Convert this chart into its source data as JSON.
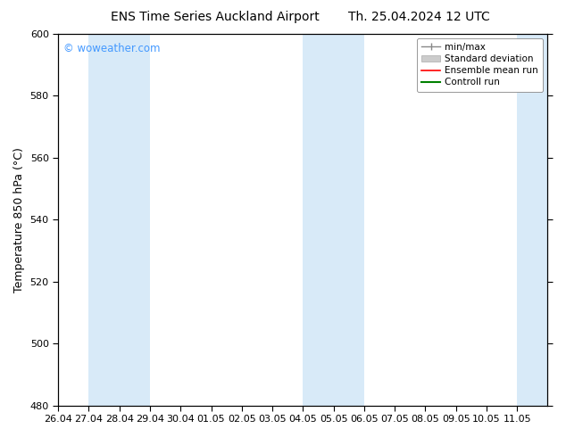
{
  "title_left": "ENS Time Series Auckland Airport",
  "title_right": "Th. 25.04.2024 12 UTC",
  "ylabel": "Temperature 850 hPa (°C)",
  "ylim": [
    480,
    600
  ],
  "yticks": [
    480,
    500,
    520,
    540,
    560,
    580,
    600
  ],
  "xtick_labels": [
    "26.04",
    "27.04",
    "28.04",
    "29.04",
    "30.04",
    "01.05",
    "02.05",
    "03.05",
    "04.05",
    "05.05",
    "06.05",
    "07.05",
    "08.05",
    "09.05",
    "10.05",
    "11.05"
  ],
  "watermark": "© woweather.com",
  "watermark_color": "#4499ff",
  "background_color": "#ffffff",
  "plot_bg_color": "#ffffff",
  "blue_band_color": "#d8eaf8",
  "blue_bands": [
    {
      "start": 1,
      "end": 3
    },
    {
      "start": 8,
      "end": 10
    },
    {
      "start": 15,
      "end": 16
    }
  ],
  "legend_items": [
    {
      "label": "min/max",
      "color": "#999999",
      "lw": 1.2
    },
    {
      "label": "Standard deviation",
      "color": "#cccccc",
      "lw": 6
    },
    {
      "label": "Ensemble mean run",
      "color": "red",
      "lw": 1.2
    },
    {
      "label": "Controll run",
      "color": "green",
      "lw": 1.5
    }
  ],
  "spine_color": "#000000",
  "tick_color": "#000000",
  "fontsize_title": 10,
  "fontsize_axis_label": 9,
  "fontsize_tick": 8,
  "fontsize_legend": 7.5,
  "fontsize_watermark": 8.5
}
